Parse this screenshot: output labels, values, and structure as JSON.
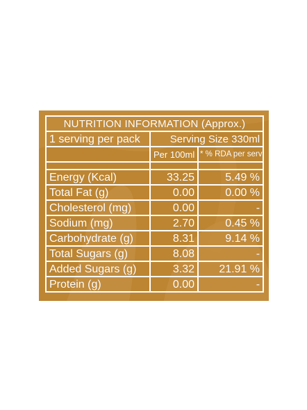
{
  "nutrition": {
    "title": "NUTRITION INFORMATION (Approx.)",
    "serving_per_pack": "1 serving per pack",
    "serving_size": "Serving Size 330ml",
    "col_per_100ml": "Per 100ml",
    "col_rda": "* % RDA per serve",
    "rows": [
      {
        "name": "Energy (Kcal)",
        "per100": "33.25",
        "rda": "5.49 %"
      },
      {
        "name": "Total Fat (g)",
        "per100": "0.00",
        "rda": "0.00 %"
      },
      {
        "name": "Cholesterol (mg)",
        "per100": "0.00",
        "rda": "-"
      },
      {
        "name": "Sodium (mg)",
        "per100": "2.70",
        "rda": "0.45 %"
      },
      {
        "name": "Carbohydrate (g)",
        "per100": "8.31",
        "rda": "9.14 %"
      },
      {
        "name": "Total Sugars (g)",
        "per100": "8.08",
        "rda": "-"
      },
      {
        "name": "Added Sugars (g)",
        "per100": "3.32",
        "rda": "21.91 %"
      },
      {
        "name": "Protein (g)",
        "per100": "0.00",
        "rda": "-"
      }
    ]
  },
  "colors": {
    "panel_background": "#bd8531",
    "panel_deco": "#c9944a",
    "text_and_borders": "#ffffff"
  }
}
